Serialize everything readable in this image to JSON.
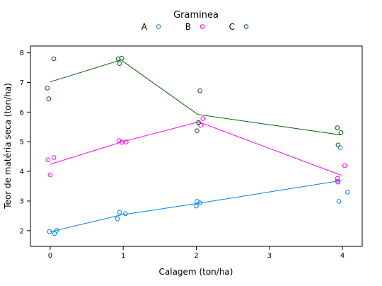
{
  "chart_data": {
    "type": "scatter",
    "legend_title": "Graminea",
    "legend_placement": "top",
    "xlabel": "Calagem (ton/ha)",
    "ylabel": "Teor de matéria seca (ton/ha)",
    "xlim": [
      -0.27,
      4.27
    ],
    "ylim": [
      1.47,
      8.23
    ],
    "x_ticks": [
      0,
      1,
      2,
      3,
      4
    ],
    "x_tick_labels": [
      "0",
      "1",
      "2",
      "3",
      "4"
    ],
    "y_ticks": [
      2,
      3,
      4,
      5,
      6,
      7,
      8
    ],
    "y_tick_labels": [
      "2",
      "3",
      "4",
      "5",
      "6",
      "7",
      "8"
    ],
    "grid": false,
    "series": [
      {
        "name": "A",
        "color": "#0080ff",
        "points": [
          {
            "x": -0.01,
            "y": 1.97
          },
          {
            "x": 0.06,
            "y": 1.9
          },
          {
            "x": 0.09,
            "y": 2.01
          },
          {
            "x": 0.92,
            "y": 2.4
          },
          {
            "x": 0.95,
            "y": 2.62
          },
          {
            "x": 1.03,
            "y": 2.57
          },
          {
            "x": 2.0,
            "y": 2.83
          },
          {
            "x": 2.01,
            "y": 2.99
          },
          {
            "x": 2.05,
            "y": 2.94
          },
          {
            "x": 3.93,
            "y": 3.67
          },
          {
            "x": 3.95,
            "y": 2.99
          },
          {
            "x": 3.97,
            "y": 4.8
          },
          {
            "x": 4.07,
            "y": 3.3
          }
        ],
        "line": [
          {
            "x": 0,
            "y": 1.96
          },
          {
            "x": 0.97,
            "y": 2.53
          },
          {
            "x": 2.02,
            "y": 2.92
          },
          {
            "x": 3.98,
            "y": 3.69
          }
        ]
      },
      {
        "name": "B",
        "color": "#ff00ff",
        "points": [
          {
            "x": -0.03,
            "y": 4.39
          },
          {
            "x": 0.0,
            "y": 3.88
          },
          {
            "x": 0.05,
            "y": 4.47
          },
          {
            "x": 0.94,
            "y": 5.04
          },
          {
            "x": 0.98,
            "y": 4.98
          },
          {
            "x": 1.04,
            "y": 4.99
          },
          {
            "x": 2.03,
            "y": 5.65
          },
          {
            "x": 2.06,
            "y": 5.55
          },
          {
            "x": 2.09,
            "y": 5.78
          },
          {
            "x": 3.93,
            "y": 3.76
          },
          {
            "x": 3.94,
            "y": 3.64
          },
          {
            "x": 4.03,
            "y": 4.19
          }
        ],
        "line": [
          {
            "x": 0,
            "y": 4.24
          },
          {
            "x": 0.99,
            "y": 5.0
          },
          {
            "x": 2.03,
            "y": 5.67
          },
          {
            "x": 3.98,
            "y": 3.87
          }
        ]
      },
      {
        "name": "C",
        "color": "#006400",
        "points": [
          {
            "x": -0.04,
            "y": 6.81
          },
          {
            "x": -0.02,
            "y": 6.45
          },
          {
            "x": 0.05,
            "y": 7.8
          },
          {
            "x": 0.93,
            "y": 7.8
          },
          {
            "x": 0.95,
            "y": 7.64
          },
          {
            "x": 0.98,
            "y": 7.82
          },
          {
            "x": 2.01,
            "y": 5.37
          },
          {
            "x": 2.03,
            "y": 5.64
          },
          {
            "x": 2.05,
            "y": 6.72
          },
          {
            "x": 3.93,
            "y": 5.47
          },
          {
            "x": 3.94,
            "y": 4.89
          },
          {
            "x": 3.98,
            "y": 5.31
          }
        ],
        "line": [
          {
            "x": 0,
            "y": 7.02
          },
          {
            "x": 0.97,
            "y": 7.76
          },
          {
            "x": 2.02,
            "y": 5.92
          },
          {
            "x": 3.98,
            "y": 5.23
          }
        ]
      }
    ]
  }
}
